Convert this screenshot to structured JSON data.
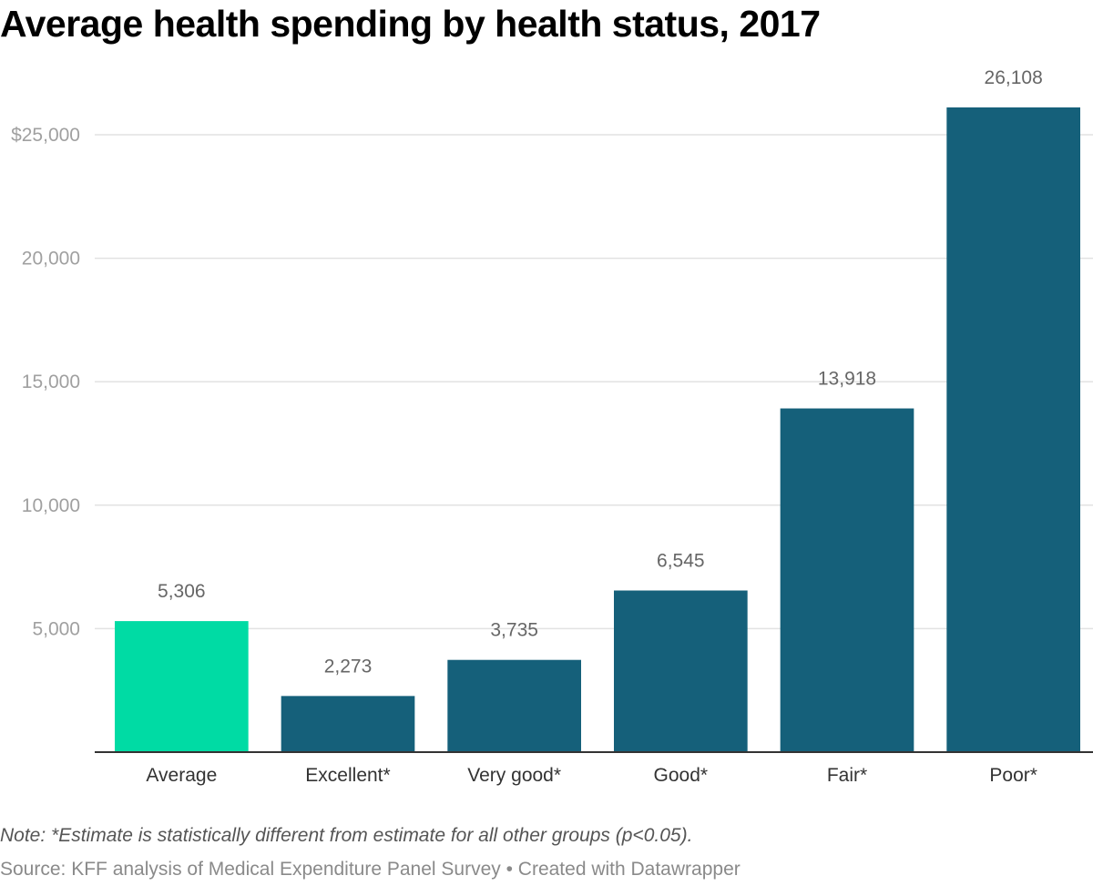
{
  "title": "Average health spending by health status, 2017",
  "note": "Note: *Estimate is statistically different from estimate for all other groups (p<0.05).",
  "source": "Source: KFF analysis of Medical Expenditure Panel Survey • Created with Datawrapper",
  "chart_data": {
    "type": "bar",
    "categories": [
      "Average",
      "Excellent*",
      "Very good*",
      "Good*",
      "Fair*",
      "Poor*"
    ],
    "values": [
      5306,
      2273,
      3735,
      6545,
      13918,
      26108
    ],
    "value_labels": [
      "5,306",
      "2,273",
      "3,735",
      "6,545",
      "13,918",
      "26,108"
    ],
    "ylim": [
      0,
      25000
    ],
    "yticks": [
      5000,
      10000,
      15000,
      20000,
      25000
    ],
    "ytick_labels": [
      "5,000",
      "10,000",
      "15,000",
      "20,000",
      "$25,000"
    ],
    "grid": true,
    "colors": {
      "highlight": "#00dba4",
      "default": "#15607a",
      "grid": "#e2e2e2",
      "baseline": "#333333"
    },
    "highlight_category": "Average"
  }
}
